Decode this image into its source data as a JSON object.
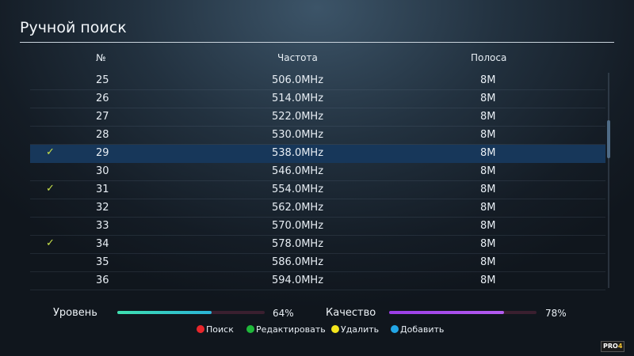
{
  "title": "Ручной поиск",
  "columns": {
    "num": "№",
    "freq": "Частота",
    "band": "Полоса"
  },
  "rows": [
    {
      "check": "",
      "num": "25",
      "freq": "506.0MHz",
      "band": "8M",
      "selected": false
    },
    {
      "check": "",
      "num": "26",
      "freq": "514.0MHz",
      "band": "8M",
      "selected": false
    },
    {
      "check": "",
      "num": "27",
      "freq": "522.0MHz",
      "band": "8M",
      "selected": false
    },
    {
      "check": "",
      "num": "28",
      "freq": "530.0MHz",
      "band": "8M",
      "selected": false
    },
    {
      "check": "✓",
      "num": "29",
      "freq": "538.0MHz",
      "band": "8M",
      "selected": true
    },
    {
      "check": "",
      "num": "30",
      "freq": "546.0MHz",
      "band": "8M",
      "selected": false
    },
    {
      "check": "✓",
      "num": "31",
      "freq": "554.0MHz",
      "band": "8M",
      "selected": false
    },
    {
      "check": "",
      "num": "32",
      "freq": "562.0MHz",
      "band": "8M",
      "selected": false
    },
    {
      "check": "",
      "num": "33",
      "freq": "570.0MHz",
      "band": "8M",
      "selected": false
    },
    {
      "check": "✓",
      "num": "34",
      "freq": "578.0MHz",
      "band": "8M",
      "selected": false
    },
    {
      "check": "",
      "num": "35",
      "freq": "586.0MHz",
      "band": "8M",
      "selected": false
    },
    {
      "check": "",
      "num": "36",
      "freq": "594.0MHz",
      "band": "8M",
      "selected": false
    }
  ],
  "signal": {
    "level_label": "Уровень",
    "level_value": 0.64,
    "level_pct": "64%",
    "quality_label": "Качество",
    "quality_value": 0.78,
    "quality_pct": "78%"
  },
  "keys": [
    {
      "label": "Поиск",
      "color": "#e8262b"
    },
    {
      "label": "Редактировать",
      "color": "#1fb83a"
    },
    {
      "label": "Удалить",
      "color": "#f4e51c"
    },
    {
      "label": "Добавить",
      "color": "#22a6e6"
    }
  ],
  "logo": {
    "text": "PRO",
    "mark": "4"
  }
}
